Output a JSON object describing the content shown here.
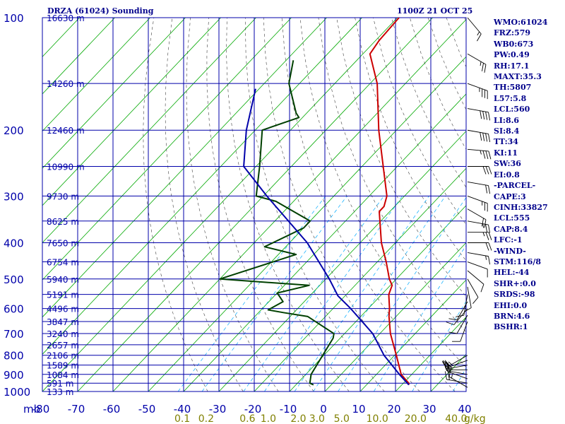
{
  "header": {
    "station": "DRZA (61024) Sounding",
    "time": "1100Z 21 OCT 25"
  },
  "chart_data": {
    "type": "line",
    "title": "DRZA (61024) Sounding",
    "subtitle": "1100Z 21 OCT 25",
    "ylabel": "mb",
    "pressure_levels": [
      100,
      200,
      300,
      400,
      500,
      600,
      700,
      800,
      900,
      1000
    ],
    "temp_ticks": [
      -80,
      -70,
      -60,
      -50,
      -40,
      -30,
      -20,
      -10,
      0,
      10,
      20,
      30,
      40
    ],
    "xlim": [
      -80,
      40
    ],
    "ylim": [
      1000,
      100
    ],
    "height_labels": [
      {
        "p": 100,
        "label": "16630 m"
      },
      {
        "p": 150,
        "label": "14260 m"
      },
      {
        "p": 200,
        "label": "12460 m"
      },
      {
        "p": 250,
        "label": "10990 m"
      },
      {
        "p": 300,
        "label": "9730 m"
      },
      {
        "p": 350,
        "label": "8625 m"
      },
      {
        "p": 400,
        "label": "7650 m"
      },
      {
        "p": 450,
        "label": "6754 m"
      },
      {
        "p": 500,
        "label": "5940 m"
      },
      {
        "p": 550,
        "label": "5191 m"
      },
      {
        "p": 600,
        "label": "4496 m"
      },
      {
        "p": 650,
        "label": "3847 m"
      },
      {
        "p": 700,
        "label": "3240 m"
      },
      {
        "p": 750,
        "label": "2657 m"
      },
      {
        "p": 800,
        "label": "2106 m"
      },
      {
        "p": 850,
        "label": "1589 m"
      },
      {
        "p": 900,
        "label": "1084 m"
      },
      {
        "p": 950,
        "label": "591 m"
      },
      {
        "p": 1000,
        "label": "133 m"
      }
    ],
    "mixing_ratio_labels": [
      {
        "w": 0.1,
        "label": "0.1"
      },
      {
        "w": 0.2,
        "label": "0.2"
      },
      {
        "w": 0.6,
        "label": "0.6"
      },
      {
        "w": 1.0,
        "label": "1.0"
      },
      {
        "w": 2.0,
        "label": "2.0"
      },
      {
        "w": 3.0,
        "label": "3.0"
      },
      {
        "w": 5.0,
        "label": "5.0"
      },
      {
        "w": 10.0,
        "label": "10.0"
      },
      {
        "w": 20.0,
        "label": "20.0"
      },
      {
        "w": 40.0,
        "label": "40.0"
      }
    ],
    "mixing_ratio_unit": "g/kg",
    "series": [
      {
        "name": "Temperature",
        "color": "#cc0000",
        "points": [
          {
            "p": 100,
            "t": -79.5
          },
          {
            "p": 115,
            "t": -79.0
          },
          {
            "p": 125,
            "t": -78.0
          },
          {
            "p": 150,
            "t": -68.0
          },
          {
            "p": 200,
            "t": -55.0
          },
          {
            "p": 250,
            "t": -44.0
          },
          {
            "p": 300,
            "t": -35.0
          },
          {
            "p": 320,
            "t": -33.0
          },
          {
            "p": 330,
            "t": -33.0
          },
          {
            "p": 400,
            "t": -24.0
          },
          {
            "p": 450,
            "t": -17.5
          },
          {
            "p": 500,
            "t": -12.0
          },
          {
            "p": 520,
            "t": -9.5
          },
          {
            "p": 550,
            "t": -8.0
          },
          {
            "p": 600,
            "t": -4.0
          },
          {
            "p": 615,
            "t": -3.0
          },
          {
            "p": 630,
            "t": -2.0
          },
          {
            "p": 700,
            "t": 3.0
          },
          {
            "p": 800,
            "t": 10.5
          },
          {
            "p": 900,
            "t": 17.0
          },
          {
            "p": 950,
            "t": 21.5
          },
          {
            "p": 960,
            "t": 22.0
          }
        ]
      },
      {
        "name": "Dewpoint",
        "color": "#004000",
        "points": [
          {
            "p": 130,
            "t": -98.0
          },
          {
            "p": 150,
            "t": -93.0
          },
          {
            "p": 180,
            "t": -83.0
          },
          {
            "p": 185,
            "t": -81.0
          },
          {
            "p": 200,
            "t": -88.0
          },
          {
            "p": 250,
            "t": -79.0
          },
          {
            "p": 300,
            "t": -72.0
          },
          {
            "p": 310,
            "t": -65.0
          },
          {
            "p": 350,
            "t": -50.0
          },
          {
            "p": 365,
            "t": -50.0
          },
          {
            "p": 410,
            "t": -56.0
          },
          {
            "p": 430,
            "t": -45.0
          },
          {
            "p": 500,
            "t": -60.0
          },
          {
            "p": 520,
            "t": -33.0
          },
          {
            "p": 545,
            "t": -40.0
          },
          {
            "p": 575,
            "t": -36.0
          },
          {
            "p": 605,
            "t": -38.0
          },
          {
            "p": 615,
            "t": -33.0
          },
          {
            "p": 630,
            "t": -25.0
          },
          {
            "p": 700,
            "t": -13.0
          },
          {
            "p": 720,
            "t": -12.0
          },
          {
            "p": 900,
            "t": -8.5
          },
          {
            "p": 950,
            "t": -6.5
          },
          {
            "p": 960,
            "t": -5.0
          }
        ]
      },
      {
        "name": "Parcel",
        "color": "#0000aa",
        "points": [
          {
            "p": 155,
            "t": -101.0
          },
          {
            "p": 200,
            "t": -92.5
          },
          {
            "p": 250,
            "t": -83.5
          },
          {
            "p": 300,
            "t": -69.0
          },
          {
            "p": 400,
            "t": -45.0
          },
          {
            "p": 500,
            "t": -29.0
          },
          {
            "p": 555,
            "t": -22.0
          },
          {
            "p": 600,
            "t": -15.0
          },
          {
            "p": 700,
            "t": -2.0
          },
          {
            "p": 800,
            "t": 7.0
          },
          {
            "p": 900,
            "t": 16.5
          },
          {
            "p": 960,
            "t": 22.0
          }
        ]
      }
    ],
    "wind_barbs": [
      {
        "p": 100,
        "dir": 320,
        "spd": 15
      },
      {
        "p": 125,
        "dir": 300,
        "spd": 25
      },
      {
        "p": 150,
        "dir": 290,
        "spd": 35
      },
      {
        "p": 175,
        "dir": 280,
        "spd": 40
      },
      {
        "p": 200,
        "dir": 280,
        "spd": 40
      },
      {
        "p": 225,
        "dir": 275,
        "spd": 35
      },
      {
        "p": 250,
        "dir": 270,
        "spd": 30
      },
      {
        "p": 275,
        "dir": 280,
        "spd": 20
      },
      {
        "p": 300,
        "dir": 290,
        "spd": 25
      },
      {
        "p": 325,
        "dir": 300,
        "spd": 20
      },
      {
        "p": 350,
        "dir": 280,
        "spd": 25
      },
      {
        "p": 375,
        "dir": 270,
        "spd": 25
      },
      {
        "p": 400,
        "dir": 270,
        "spd": 20
      },
      {
        "p": 425,
        "dir": 280,
        "spd": 15
      },
      {
        "p": 450,
        "dir": 290,
        "spd": 10
      },
      {
        "p": 475,
        "dir": 310,
        "spd": 10
      },
      {
        "p": 500,
        "dir": 330,
        "spd": 10
      },
      {
        "p": 525,
        "dir": 350,
        "spd": 10
      },
      {
        "p": 550,
        "dir": 10,
        "spd": 10
      },
      {
        "p": 575,
        "dir": 30,
        "spd": 10
      },
      {
        "p": 600,
        "dir": 40,
        "spd": 10
      },
      {
        "p": 625,
        "dir": 30,
        "spd": 10
      },
      {
        "p": 650,
        "dir": 20,
        "spd": 10
      },
      {
        "p": 800,
        "dir": 60,
        "spd": 15
      },
      {
        "p": 825,
        "dir": 70,
        "spd": 20
      },
      {
        "p": 850,
        "dir": 80,
        "spd": 20
      },
      {
        "p": 875,
        "dir": 90,
        "spd": 25
      },
      {
        "p": 900,
        "dir": 100,
        "spd": 20
      },
      {
        "p": 925,
        "dir": 110,
        "spd": 15
      },
      {
        "p": 950,
        "dir": 100,
        "spd": 20
      },
      {
        "p": 975,
        "dir": 120,
        "spd": 15
      }
    ]
  },
  "stats": [
    "WMO:61024",
    "FRZ:579",
    "WB0:673",
    "PW:0.49",
    "RH:17.1",
    "MAXT:35.3",
    "TH:5807",
    "L57:5.8",
    "LCL:560",
    "LI:8.6",
    "SI:8.4",
    "TT:34",
    "KI:11",
    "SW:36",
    "EI:0.8",
    "-PARCEL-",
    "CAPE:3",
    "CINH:33827",
    "LCL:555",
    "CAP:8.4",
    "LFC:-1",
    "-WIND-",
    "STM:116/8",
    "HEL:-44",
    "SHR+:0.0",
    "SRDS:-98",
    "EHI:0.0",
    "BRN:4.6",
    "BSHR:1"
  ],
  "colors": {
    "grid": "#0000aa",
    "isotherm": "#00a800",
    "dry_adiabat": "#404040",
    "mixing_ratio": "#00aaff",
    "text": "#00008b",
    "mr_label": "#808000"
  }
}
